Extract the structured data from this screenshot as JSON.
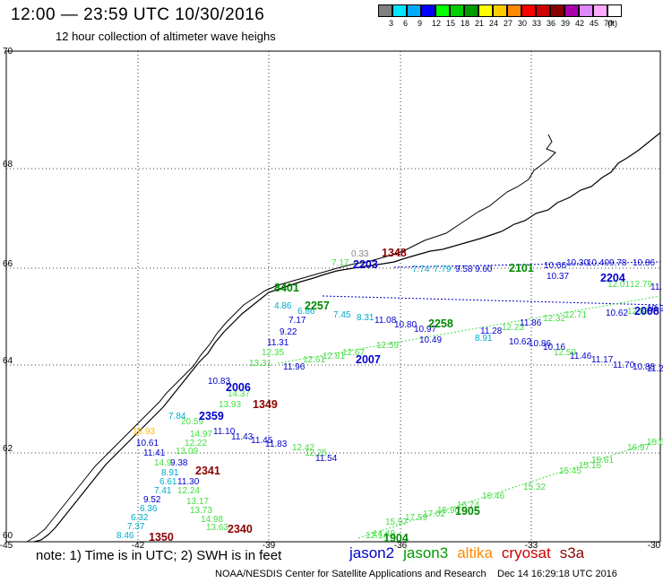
{
  "header": {
    "title": "12:00 — 23:59 UTC 10/30/2016",
    "subtitle": "12 hour collection of altimeter wave heighs"
  },
  "legend": {
    "colors": [
      "#808080",
      "#00e5ff",
      "#00aaff",
      "#0000ff",
      "#00ff00",
      "#00cc00",
      "#009900",
      "#ffff00",
      "#ffcc00",
      "#ff8800",
      "#ff0000",
      "#cc0000",
      "#880000",
      "#aa00aa",
      "#dd88ff",
      "#ffaaff",
      "#ffffff"
    ],
    "labels": [
      "3",
      "6",
      "9",
      "12",
      "15",
      "18",
      "21",
      "24",
      "27",
      "30",
      "33",
      "36",
      "39",
      "42",
      "45",
      "70",
      "(ft)"
    ]
  },
  "axes": {
    "lon_labels": [
      "-45",
      "-42",
      "-39",
      "-36",
      "-33",
      "-30"
    ],
    "lat_labels": [
      "70",
      "68",
      "66",
      "64",
      "62",
      "60"
    ]
  },
  "passes": [
    {
      "id": "1348",
      "color": "#8b0000"
    },
    {
      "id": "2203",
      "color": "#0000cc"
    },
    {
      "id": "2101",
      "color": "#008800"
    },
    {
      "id": "2204",
      "color": "#0000cc"
    },
    {
      "id": "2008",
      "color": "#0000cc"
    },
    {
      "id": "8401",
      "color": "#008800"
    },
    {
      "id": "2257",
      "color": "#008800"
    },
    {
      "id": "2258",
      "color": "#008800"
    },
    {
      "id": "2007",
      "color": "#0000cc"
    },
    {
      "id": "2006",
      "color": "#0000cc"
    },
    {
      "id": "1349",
      "color": "#8b0000"
    },
    {
      "id": "2359",
      "color": "#0000cc"
    },
    {
      "id": "2341",
      "color": "#8b0000"
    },
    {
      "id": "2340",
      "color": "#8b0000"
    },
    {
      "id": "1350",
      "color": "#8b0000"
    },
    {
      "id": "1905",
      "color": "#008800"
    },
    {
      "id": "1904",
      "color": "#008800"
    }
  ],
  "labels": [
    {
      "t": "0.33",
      "c": "#888888"
    },
    {
      "t": "7.17",
      "c": "#44dd44"
    },
    {
      "t": "7.74",
      "c": "#00aacc"
    },
    {
      "t": "7.79",
      "c": "#00aacc"
    },
    {
      "t": "9.58",
      "c": "#0000cc"
    },
    {
      "t": "9.60",
      "c": "#0000cc"
    },
    {
      "t": "10.66",
      "c": "#0000cc"
    },
    {
      "t": "10.30",
      "c": "#0000cc"
    },
    {
      "t": "10.40",
      "c": "#0000cc"
    },
    {
      "t": "9.78",
      "c": "#0000cc"
    },
    {
      "t": "10.86",
      "c": "#0000cc"
    },
    {
      "t": "10.37",
      "c": "#0000cc"
    },
    {
      "t": "12.01",
      "c": "#44dd44"
    },
    {
      "t": "12.79",
      "c": "#44dd44"
    },
    {
      "t": "11.",
      "c": "#0000cc"
    },
    {
      "t": "4.86",
      "c": "#00aacc"
    },
    {
      "t": "6.86",
      "c": "#00aacc"
    },
    {
      "t": "7.45",
      "c": "#00aacc"
    },
    {
      "t": "8.31",
      "c": "#00aacc"
    },
    {
      "t": "11.08",
      "c": "#0000cc"
    },
    {
      "t": "10.80",
      "c": "#0000cc"
    },
    {
      "t": "10.97",
      "c": "#0000cc"
    },
    {
      "t": "11.28",
      "c": "#0000cc"
    },
    {
      "t": "12.23",
      "c": "#44dd44"
    },
    {
      "t": "11.86",
      "c": "#0000cc"
    },
    {
      "t": "12.32",
      "c": "#44dd44"
    },
    {
      "t": "12.71",
      "c": "#44dd44"
    },
    {
      "t": "10.62",
      "c": "#0000cc"
    },
    {
      "t": "12.83",
      "c": "#44dd44"
    },
    {
      "t": "10.91",
      "c": "#0000cc"
    },
    {
      "t": "7.17",
      "c": "#0000cc"
    },
    {
      "t": "9.22",
      "c": "#0000cc"
    },
    {
      "t": "11.31",
      "c": "#0000cc"
    },
    {
      "t": "12.35",
      "c": "#44dd44"
    },
    {
      "t": "10.49",
      "c": "#0000cc"
    },
    {
      "t": "8.91",
      "c": "#00aacc"
    },
    {
      "t": "10.62",
      "c": "#0000cc"
    },
    {
      "t": "10.86",
      "c": "#0000cc"
    },
    {
      "t": "10.16",
      "c": "#0000cc"
    },
    {
      "t": "12.59",
      "c": "#44dd44"
    },
    {
      "t": "11.46",
      "c": "#0000cc"
    },
    {
      "t": "11.17",
      "c": "#0000cc"
    },
    {
      "t": "11.70",
      "c": "#0000cc"
    },
    {
      "t": "10.88",
      "c": "#0000cc"
    },
    {
      "t": "11.2",
      "c": "#0000cc"
    },
    {
      "t": "13.31",
      "c": "#44dd44"
    },
    {
      "t": "11.96",
      "c": "#0000cc"
    },
    {
      "t": "12.61",
      "c": "#44dd44"
    },
    {
      "t": "12.81",
      "c": "#44dd44"
    },
    {
      "t": "12.67",
      "c": "#44dd44"
    },
    {
      "t": "12.59",
      "c": "#44dd44"
    },
    {
      "t": "10.83",
      "c": "#0000cc"
    },
    {
      "t": "14.37",
      "c": "#44dd44"
    },
    {
      "t": "13.93",
      "c": "#44dd44"
    },
    {
      "t": "7.84",
      "c": "#00aacc"
    },
    {
      "t": "20.59",
      "c": "#44dd44"
    },
    {
      "t": "14.97",
      "c": "#44dd44"
    },
    {
      "t": "11.10",
      "c": "#0000cc"
    },
    {
      "t": "11.43",
      "c": "#0000cc"
    },
    {
      "t": "11.45",
      "c": "#0000cc"
    },
    {
      "t": "11.83",
      "c": "#0000cc"
    },
    {
      "t": "18.93",
      "c": "#ffbb00"
    },
    {
      "t": "10.61",
      "c": "#0000cc"
    },
    {
      "t": "12.22",
      "c": "#44dd44"
    },
    {
      "t": "11.41",
      "c": "#0000cc"
    },
    {
      "t": "13.09",
      "c": "#44dd44"
    },
    {
      "t": "12.42",
      "c": "#44dd44"
    },
    {
      "t": "12.25",
      "c": "#44dd44"
    },
    {
      "t": "11.54",
      "c": "#0000cc"
    },
    {
      "t": "9.38",
      "c": "#0000cc"
    },
    {
      "t": "8.91",
      "c": "#00aacc"
    },
    {
      "t": "14.9",
      "c": "#44dd44"
    },
    {
      "t": "6.61",
      "c": "#00aacc"
    },
    {
      "t": "11.30",
      "c": "#0000cc"
    },
    {
      "t": "7.41",
      "c": "#00aacc"
    },
    {
      "t": "12.24",
      "c": "#44dd44"
    },
    {
      "t": "9.52",
      "c": "#0000cc"
    },
    {
      "t": "13.17",
      "c": "#44dd44"
    },
    {
      "t": "6.36",
      "c": "#00aacc"
    },
    {
      "t": "13.73",
      "c": "#44dd44"
    },
    {
      "t": "6.32",
      "c": "#00aacc"
    },
    {
      "t": "14.98",
      "c": "#44dd44"
    },
    {
      "t": "7.37",
      "c": "#00aacc"
    },
    {
      "t": "13.63",
      "c": "#44dd44"
    },
    {
      "t": "8.46",
      "c": "#00aacc"
    },
    {
      "t": "15.61",
      "c": "#44dd44"
    },
    {
      "t": "16.97",
      "c": "#44dd44"
    },
    {
      "t": "15.6",
      "c": "#44dd44"
    },
    {
      "t": "15.45",
      "c": "#44dd44"
    },
    {
      "t": "15.16",
      "c": "#44dd44"
    },
    {
      "t": "15.32",
      "c": "#44dd44"
    },
    {
      "t": "16.46",
      "c": "#44dd44"
    },
    {
      "t": "16.74",
      "c": "#44dd44"
    },
    {
      "t": "15.90",
      "c": "#44dd44"
    },
    {
      "t": "17.02",
      "c": "#44dd44"
    },
    {
      "t": "17.59",
      "c": "#44dd44"
    },
    {
      "t": "15.97",
      "c": "#44dd44"
    },
    {
      "t": "14.49",
      "c": "#44dd44"
    },
    {
      "t": "12.14",
      "c": "#44dd44"
    }
  ],
  "footer": {
    "note": "note:  1) Time is in UTC;  2) SWH is in feet",
    "satellites": [
      {
        "name": "jason2",
        "color": "#0000cc"
      },
      {
        "name": "jason3",
        "color": "#009900"
      },
      {
        "name": "altika",
        "color": "#ff8800"
      },
      {
        "name": "cryosat",
        "color": "#cc0000"
      },
      {
        "name": "s3a",
        "color": "#8b0000"
      }
    ],
    "credit": "NOAA/NESDIS Center for Satellite Applications and Research",
    "timestamp": "Dec 14 16:29:18 UTC 2016"
  }
}
